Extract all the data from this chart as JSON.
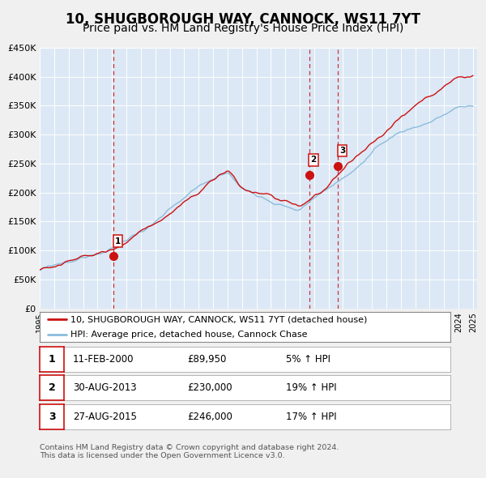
{
  "title": "10, SHUGBOROUGH WAY, CANNOCK, WS11 7YT",
  "subtitle": "Price paid vs. HM Land Registry's House Price Index (HPI)",
  "title_fontsize": 12,
  "subtitle_fontsize": 10,
  "fig_bg_color": "#f0f0f0",
  "plot_bg_color": "#dce8f5",
  "grid_color": "#ffffff",
  "ylim": [
    0,
    450000
  ],
  "yticks": [
    0,
    50000,
    100000,
    150000,
    200000,
    250000,
    300000,
    350000,
    400000,
    450000
  ],
  "ytick_labels": [
    "£0",
    "£50K",
    "£100K",
    "£150K",
    "£200K",
    "£250K",
    "£300K",
    "£350K",
    "£400K",
    "£450K"
  ],
  "hpi_color": "#8bbcdc",
  "price_color": "#cc1111",
  "sale_vline_color": "#cc3333",
  "sales": [
    {
      "year": 2000.1,
      "price": 89950,
      "label": "1"
    },
    {
      "year": 2013.65,
      "price": 230000,
      "label": "2"
    },
    {
      "year": 2015.65,
      "price": 246000,
      "label": "3"
    }
  ],
  "legend_entries": [
    {
      "label": "10, SHUGBOROUGH WAY, CANNOCK, WS11 7YT (detached house)",
      "color": "#cc1111"
    },
    {
      "label": "HPI: Average price, detached house, Cannock Chase",
      "color": "#8bbcdc"
    }
  ],
  "table_rows": [
    {
      "num": "1",
      "date": "11-FEB-2000",
      "price": "£89,950",
      "change": "5% ↑ HPI"
    },
    {
      "num": "2",
      "date": "30-AUG-2013",
      "price": "£230,000",
      "change": "19% ↑ HPI"
    },
    {
      "num": "3",
      "date": "27-AUG-2015",
      "price": "£246,000",
      "change": "17% ↑ HPI"
    }
  ],
  "footer": "Contains HM Land Registry data © Crown copyright and database right 2024.\nThis data is licensed under the Open Government Licence v3.0."
}
